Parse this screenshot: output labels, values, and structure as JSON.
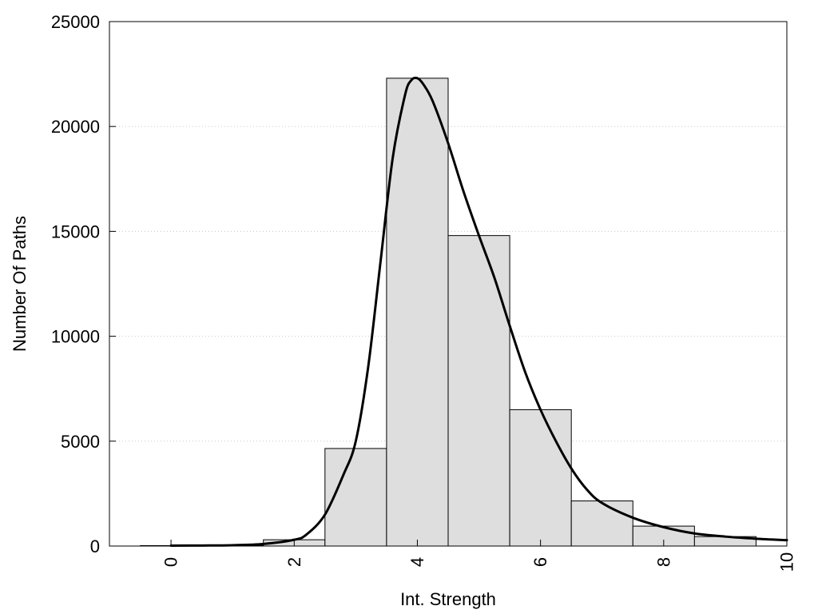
{
  "chart_data": {
    "type": "bar",
    "title": "",
    "xlabel": "Int. Strength",
    "ylabel": "Number Of Paths",
    "xlim": [
      -1,
      10
    ],
    "ylim": [
      0,
      25000
    ],
    "grid": true,
    "x_ticks": [
      {
        "value": 0,
        "label": "0"
      },
      {
        "value": 2,
        "label": "2"
      },
      {
        "value": 4,
        "label": "4"
      },
      {
        "value": 6,
        "label": "6"
      },
      {
        "value": 8,
        "label": "8"
      },
      {
        "value": 10,
        "label": "10"
      }
    ],
    "y_ticks": [
      {
        "value": 0,
        "label": "0"
      },
      {
        "value": 5000,
        "label": "5000"
      },
      {
        "value": 10000,
        "label": "10000"
      },
      {
        "value": 15000,
        "label": "15000"
      },
      {
        "value": 20000,
        "label": "20000"
      },
      {
        "value": 25000,
        "label": "25000"
      }
    ],
    "bars": [
      {
        "x": 0,
        "value": 20
      },
      {
        "x": 1,
        "value": 40
      },
      {
        "x": 2,
        "value": 300
      },
      {
        "x": 3,
        "value": 4650
      },
      {
        "x": 4,
        "value": 22300
      },
      {
        "x": 5,
        "value": 14800
      },
      {
        "x": 6,
        "value": 6500
      },
      {
        "x": 7,
        "value": 2150
      },
      {
        "x": 8,
        "value": 950
      },
      {
        "x": 9,
        "value": 450
      }
    ],
    "bar_width": 1,
    "bar_color": "#dedede",
    "curve": {
      "x": [
        0,
        0.5,
        1,
        1.5,
        2,
        2.2,
        2.5,
        2.8,
        3,
        3.2,
        3.4,
        3.6,
        3.8,
        3.9,
        4,
        4.1,
        4.25,
        4.5,
        4.75,
        5,
        5.25,
        5.5,
        5.75,
        6,
        6.25,
        6.5,
        6.75,
        7,
        7.5,
        8,
        8.5,
        9,
        9.5,
        10
      ],
      "y": [
        20,
        25,
        40,
        100,
        300,
        550,
        1500,
        3400,
        5000,
        8500,
        13500,
        18500,
        21500,
        22200,
        22300,
        22000,
        21200,
        19200,
        16900,
        14800,
        12800,
        10500,
        8300,
        6500,
        5000,
        3700,
        2700,
        2050,
        1350,
        900,
        600,
        450,
        350,
        280
      ]
    }
  }
}
